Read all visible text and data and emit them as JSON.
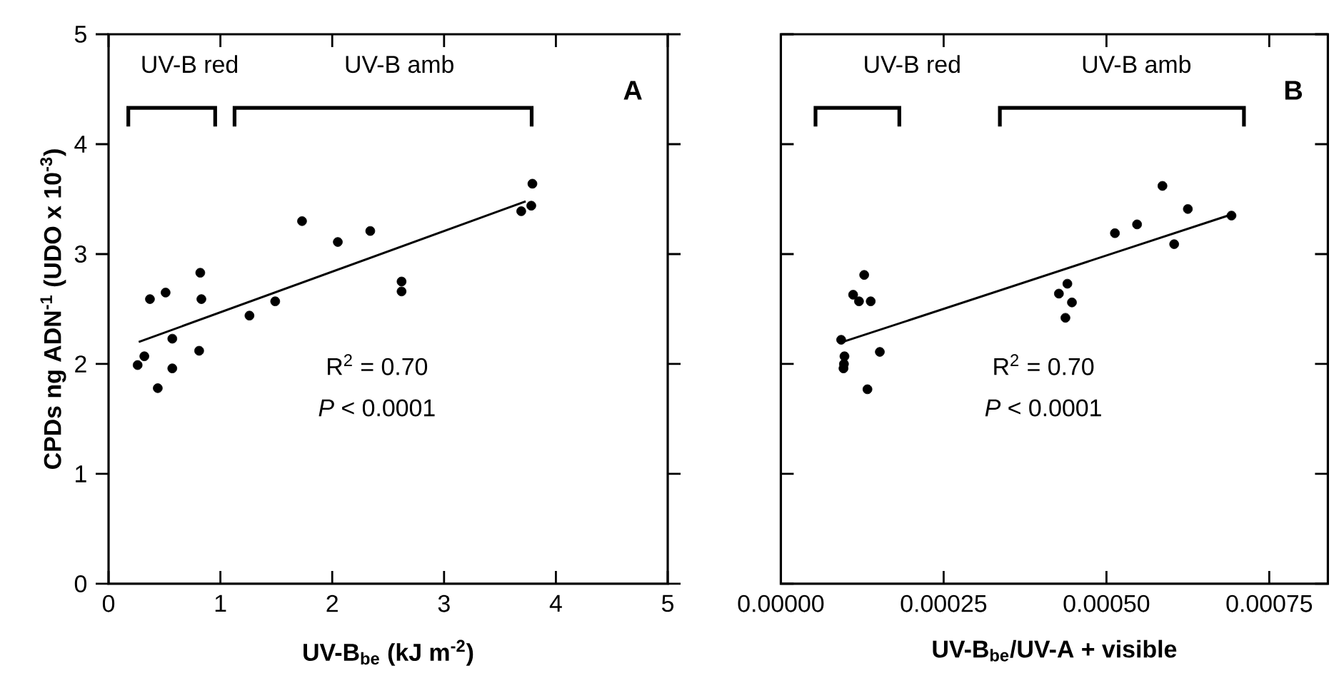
{
  "chart_data": [
    {
      "type": "scatter",
      "xlabel": "UV-B$_{be}$ (kJ m$^{-2}$)",
      "ylabel": "CPDs ng ADN$^{-1}$ (UDO x 10$^{-3}$)",
      "xlim": [
        0,
        5
      ],
      "ylim": [
        0,
        5
      ],
      "xticks": [
        0,
        1,
        2,
        3,
        4,
        5
      ],
      "yticks": [
        0,
        1,
        2,
        3,
        4,
        5
      ],
      "grid": false,
      "series": [
        {
          "color": "#000000",
          "marker": "circle",
          "x": [
            0.26,
            0.32,
            0.37,
            0.44,
            0.51,
            0.57,
            0.57,
            0.82,
            0.83,
            0.81,
            1.26,
            1.49,
            1.73,
            2.05,
            2.34,
            2.62,
            2.62,
            3.69,
            3.78,
            3.79
          ],
          "values": [
            1.99,
            2.07,
            2.59,
            1.78,
            2.65,
            2.23,
            1.96,
            2.83,
            2.59,
            2.12,
            2.44,
            2.57,
            3.3,
            3.11,
            3.21,
            2.75,
            2.66,
            3.39,
            3.44,
            3.64
          ]
        },
        {
          "type": "line",
          "color": "#000000",
          "marker": "none",
          "x": [
            0.27,
            3.73
          ],
          "values": [
            2.2,
            3.48
          ]
        }
      ],
      "annotations": [
        "A",
        "R$^{2}$ = 0.70",
        "*P* < 0.0001",
        "UV-B red",
        "UV-B amb"
      ]
    },
    {
      "type": "scatter",
      "xlabel": "UV-B$_{be}$/UV-A + visible",
      "xlim": [
        0,
        0.00084
      ],
      "ylim": [
        0,
        5
      ],
      "xticks": [
        {
          "value": 0,
          "label": "0.00000"
        },
        {
          "value": 0.00025,
          "label": "0.00025"
        },
        {
          "value": 0.0005,
          "label": "0.00050"
        },
        {
          "value": 0.00075,
          "label": "0.00075"
        }
      ],
      "yticks": [
        {
          "value": 0,
          "label": null
        },
        {
          "value": 1,
          "label": null
        },
        {
          "value": 2,
          "label": null
        },
        {
          "value": 3,
          "label": null
        },
        {
          "value": 4,
          "label": null
        },
        {
          "value": 5,
          "label": null
        }
      ],
      "tick_labels": "x",
      "grid": false,
      "series": [
        {
          "color": "#000000",
          "marker": "circle",
          "x": [
            9.26e-05,
            9.77e-05,
            9.62e-05,
            9.69e-05,
            0.000111,
            0.00012,
            0.000128,
            0.000138,
            0.000133,
            0.000152,
            0.000427,
            0.00044,
            0.000447,
            0.000437,
            0.000513,
            0.000547,
            0.000586,
            0.000604,
            0.000625,
            0.000692
          ],
          "values": [
            2.22,
            2.07,
            1.96,
            2.0,
            2.63,
            2.57,
            2.81,
            2.57,
            1.77,
            2.11,
            2.64,
            2.73,
            2.56,
            2.42,
            3.19,
            3.27,
            3.62,
            3.09,
            3.41,
            3.35
          ]
        },
        {
          "type": "line",
          "color": "#000000",
          "marker": "none",
          "x": [
            9.48e-05,
            0.000692
          ],
          "values": [
            2.2,
            3.36
          ]
        }
      ],
      "annotations": [
        "B",
        "R$^{2}$ = 0.70",
        "*P* < 0.0001",
        "UV-B red",
        "UV-B amb"
      ]
    }
  ]
}
